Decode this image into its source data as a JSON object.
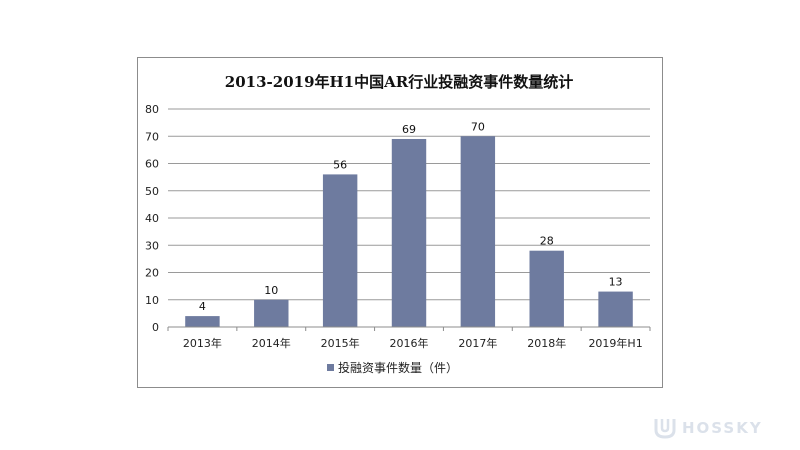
{
  "chart_data": {
    "type": "bar",
    "title": "2013-2019年H1中国AR行业投融资事件数量统计",
    "categories": [
      "2013年",
      "2014年",
      "2015年",
      "2016年",
      "2017年",
      "2018年",
      "2019年H1"
    ],
    "series": [
      {
        "name": "投融资事件数量（件）",
        "values": [
          4,
          10,
          56,
          69,
          70,
          28,
          13
        ]
      }
    ],
    "ylim": [
      0,
      80
    ],
    "yticks": [
      0,
      10,
      20,
      30,
      40,
      50,
      60,
      70,
      80
    ],
    "grid": true,
    "legend_position": "bottom",
    "bar_color": "#6e7b9f",
    "grid_color": "#9a9a9a"
  },
  "watermark": {
    "text": "HOSSKY",
    "icon": "hosky-logo-icon"
  }
}
